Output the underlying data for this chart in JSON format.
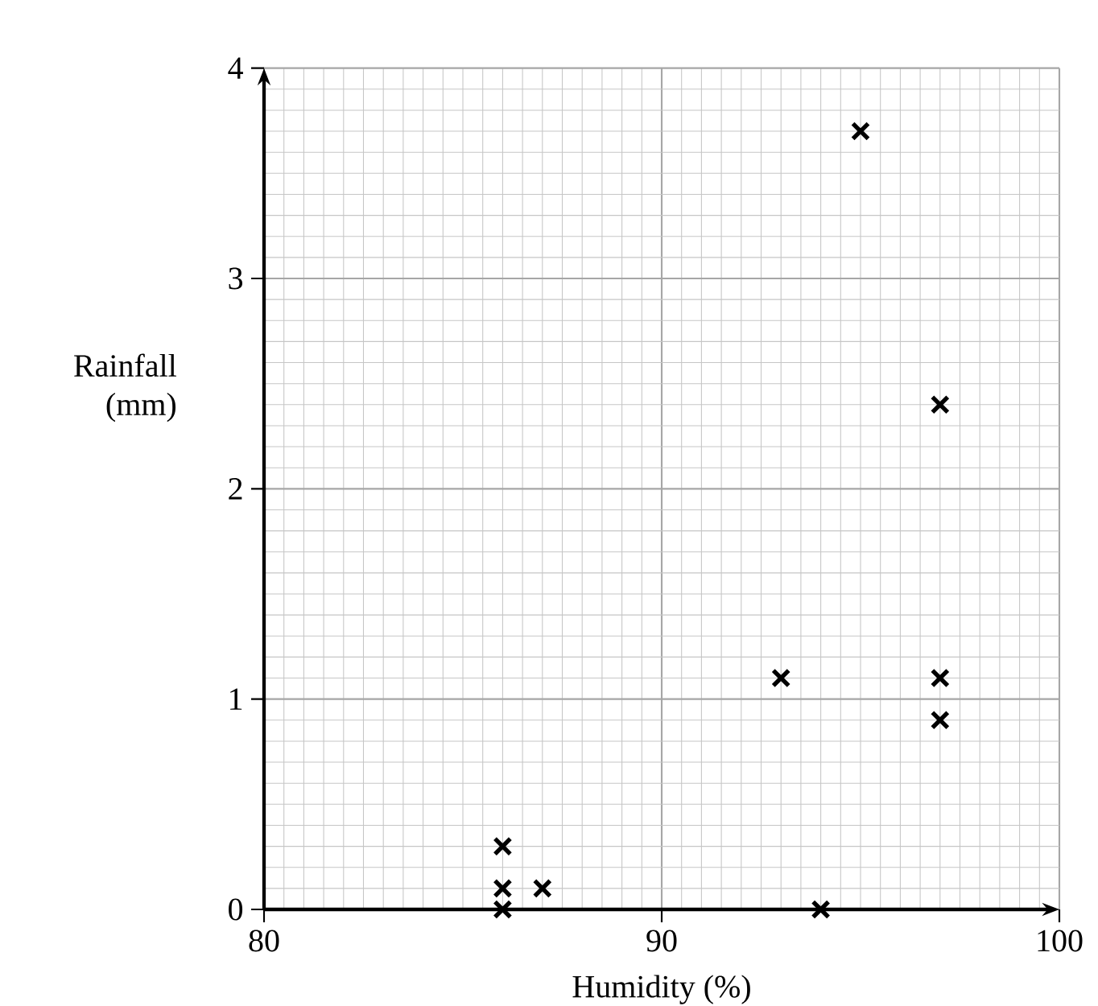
{
  "chart_data": {
    "type": "scatter",
    "xlabel": "Humidity (%)",
    "ylabel": "Rainfall (mm)",
    "x": [
      95,
      97,
      93,
      97,
      97,
      86,
      86,
      87,
      86,
      94
    ],
    "values": [
      3.7,
      2.4,
      1.1,
      1.1,
      0.9,
      0.3,
      0.1,
      0.1,
      0,
      0
    ],
    "color": "#000000",
    "marker": "cross",
    "grid": true,
    "xlim": [
      80,
      100
    ],
    "ylim": [
      0,
      4
    ],
    "xticks": [
      80,
      90,
      100
    ],
    "yticks": [
      0,
      1,
      2,
      3,
      4
    ]
  }
}
